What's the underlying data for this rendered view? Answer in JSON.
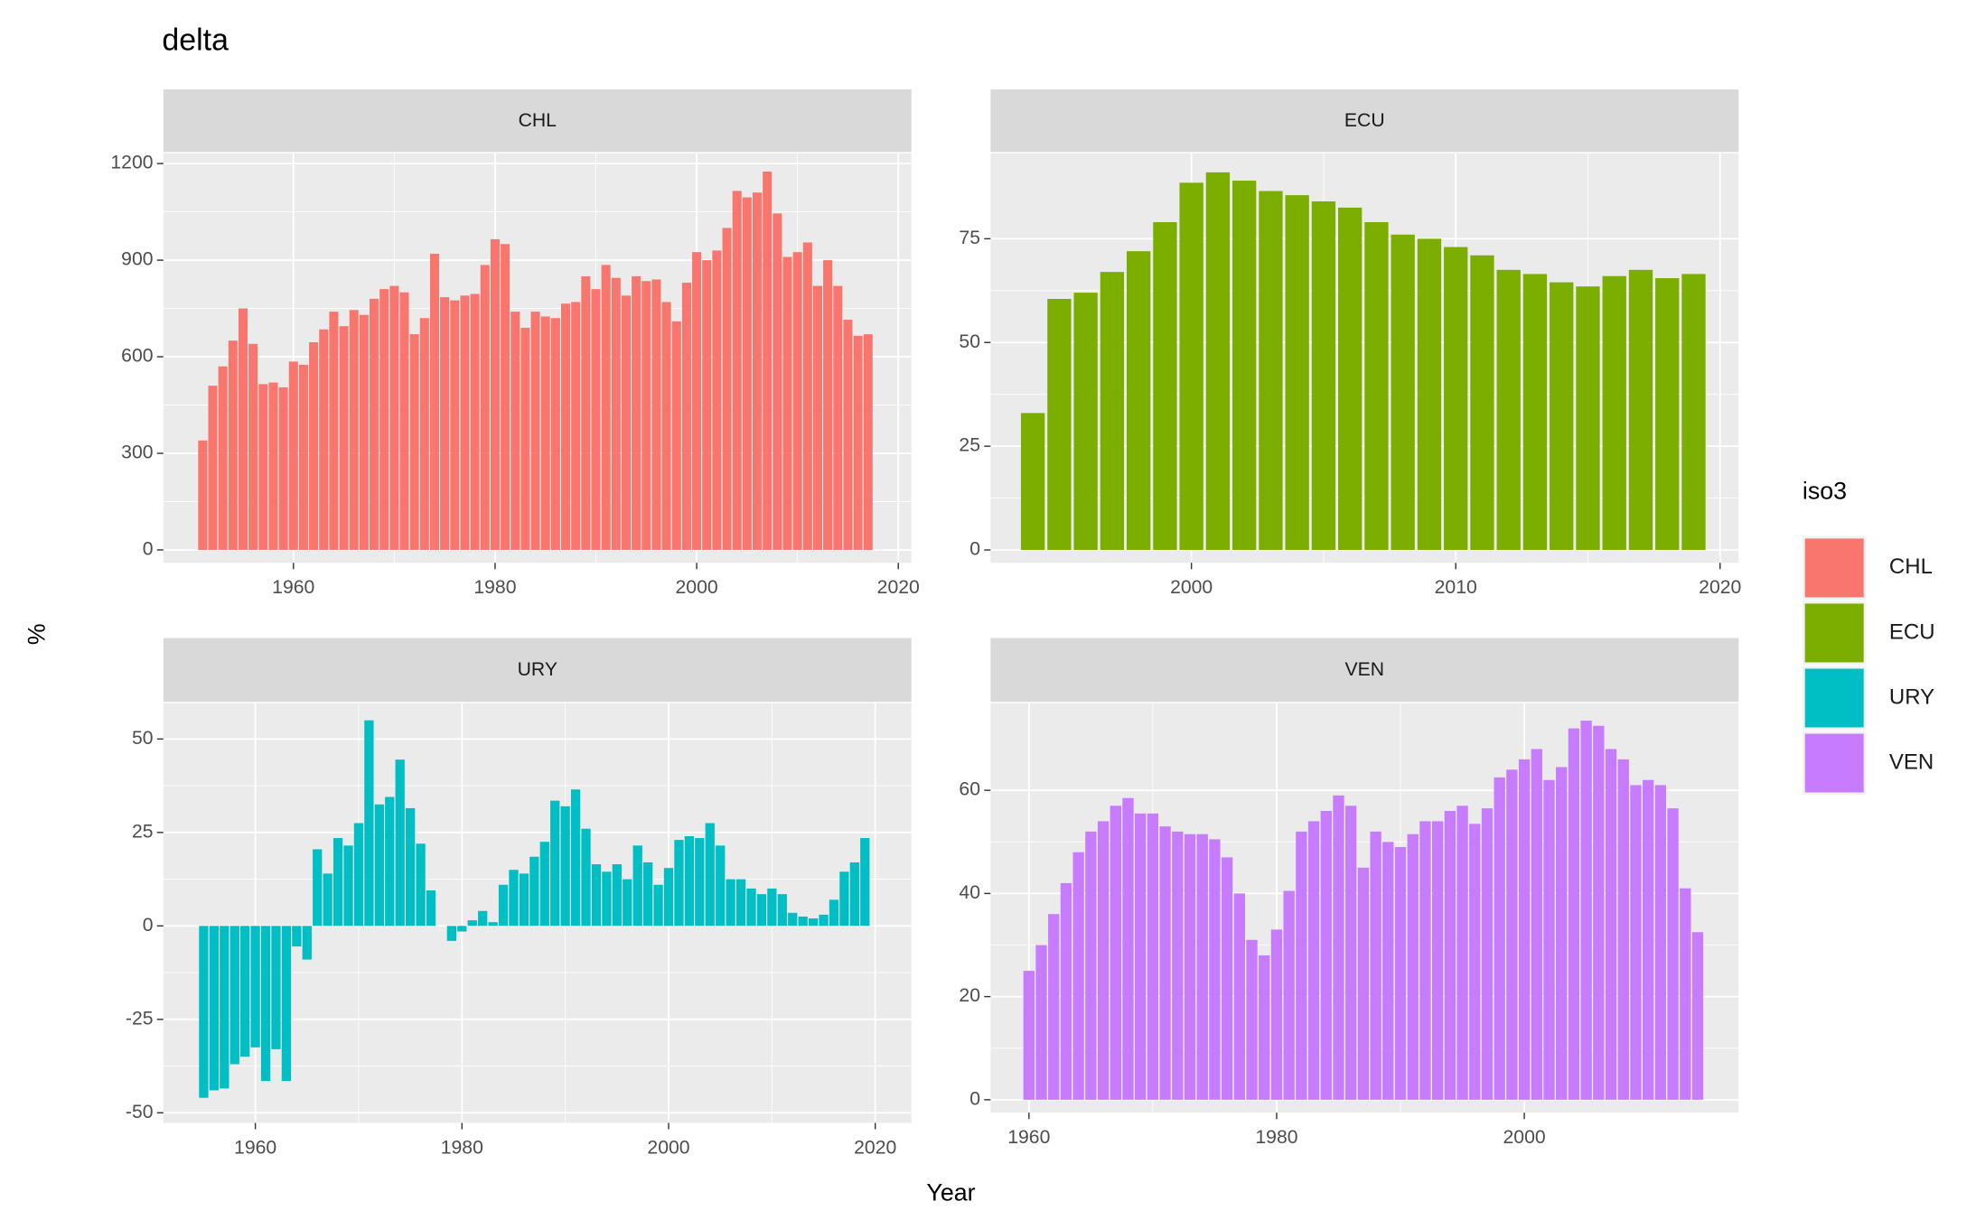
{
  "title": "delta",
  "x_label": "Year",
  "y_label": "%",
  "legend_title": "iso3",
  "chart_data": [
    {
      "type": "bar",
      "title": "CHL",
      "color": "#F8766D",
      "x": [
        1951,
        1952,
        1953,
        1954,
        1955,
        1956,
        1957,
        1958,
        1959,
        1960,
        1961,
        1962,
        1963,
        1964,
        1965,
        1966,
        1967,
        1968,
        1969,
        1970,
        1971,
        1972,
        1973,
        1974,
        1975,
        1976,
        1977,
        1978,
        1979,
        1980,
        1981,
        1982,
        1983,
        1984,
        1985,
        1986,
        1987,
        1988,
        1989,
        1990,
        1991,
        1992,
        1993,
        1994,
        1995,
        1996,
        1997,
        1998,
        1999,
        2000,
        2001,
        2002,
        2003,
        2004,
        2005,
        2006,
        2007,
        2008,
        2009,
        2010,
        2011,
        2012,
        2013,
        2014,
        2015,
        2016,
        2017
      ],
      "values": [
        340,
        510,
        570,
        650,
        750,
        640,
        515,
        520,
        505,
        585,
        575,
        645,
        685,
        740,
        695,
        745,
        730,
        780,
        810,
        820,
        800,
        670,
        720,
        920,
        785,
        775,
        790,
        795,
        885,
        965,
        950,
        740,
        690,
        740,
        725,
        720,
        765,
        770,
        850,
        810,
        885,
        845,
        790,
        850,
        835,
        840,
        770,
        710,
        830,
        925,
        900,
        930,
        1000,
        1115,
        1095,
        1110,
        1175,
        1045,
        910,
        925,
        955,
        820,
        900,
        820,
        715,
        665,
        670
      ],
      "xlim": [
        1947.1,
        2021.3
      ],
      "ylim": [
        -40,
        1232
      ],
      "xticks": [
        1960,
        1980,
        2000,
        2020
      ],
      "yticks": [
        0,
        300,
        600,
        900,
        1200
      ]
    },
    {
      "type": "bar",
      "title": "ECU",
      "color": "#7CAE00",
      "x": [
        1994,
        1995,
        1996,
        1997,
        1998,
        1999,
        2000,
        2001,
        2002,
        2003,
        2004,
        2005,
        2006,
        2007,
        2008,
        2009,
        2010,
        2011,
        2012,
        2013,
        2014,
        2015,
        2016,
        2017,
        2018,
        2019
      ],
      "values": [
        33,
        60.5,
        62,
        67,
        72,
        79,
        88.5,
        91,
        89,
        86.5,
        85.5,
        84,
        82.5,
        79,
        76,
        75,
        73,
        71,
        67.5,
        66.5,
        64.5,
        63.5,
        66,
        67.5,
        65.5,
        66.5
      ],
      "xlim": [
        1992.4,
        2020.7
      ],
      "ylim": [
        -3.1,
        95.6
      ],
      "xticks": [
        2000,
        2010,
        2020
      ],
      "yticks": [
        0,
        25,
        50,
        75
      ]
    },
    {
      "type": "bar",
      "title": "URY",
      "color": "#00BFC4",
      "x": [
        1955,
        1956,
        1957,
        1958,
        1959,
        1960,
        1961,
        1962,
        1963,
        1964,
        1965,
        1966,
        1967,
        1968,
        1969,
        1970,
        1971,
        1972,
        1973,
        1974,
        1975,
        1976,
        1977,
        1978,
        1979,
        1980,
        1981,
        1982,
        1983,
        1984,
        1985,
        1986,
        1987,
        1988,
        1989,
        1990,
        1991,
        1992,
        1993,
        1994,
        1995,
        1996,
        1997,
        1998,
        1999,
        2000,
        2001,
        2002,
        2003,
        2004,
        2005,
        2006,
        2007,
        2008,
        2009,
        2010,
        2011,
        2012,
        2013,
        2014,
        2015,
        2016,
        2017,
        2018,
        2019
      ],
      "values": [
        -46,
        -44,
        -43.5,
        -37,
        -35,
        -32.5,
        -41.5,
        -33,
        -41.5,
        -5.5,
        -9,
        20.5,
        14,
        23.5,
        21.5,
        27.5,
        55,
        32.5,
        34.5,
        44.5,
        31.5,
        22,
        9.5,
        0,
        -4,
        -1.5,
        1.5,
        4,
        1,
        11,
        15,
        14,
        18.5,
        22.5,
        33.5,
        32,
        36.5,
        26,
        16.5,
        14.5,
        16.5,
        12.5,
        21.5,
        17,
        11,
        15.5,
        23,
        24,
        23.5,
        27.5,
        21.5,
        12.5,
        12.5,
        10,
        8.5,
        10,
        8.5,
        3.5,
        2.5,
        2,
        3,
        7,
        14.5,
        17,
        23.5
      ],
      "xlim": [
        1951.1,
        2023.5
      ],
      "ylim": [
        -52.7,
        59.6
      ],
      "xticks": [
        1960,
        1980,
        2000,
        2020
      ],
      "yticks": [
        -50,
        -25,
        0,
        25,
        50
      ]
    },
    {
      "type": "bar",
      "title": "VEN",
      "color": "#C77CFF",
      "x": [
        1960,
        1961,
        1962,
        1963,
        1964,
        1965,
        1966,
        1967,
        1968,
        1969,
        1970,
        1971,
        1972,
        1973,
        1974,
        1975,
        1976,
        1977,
        1978,
        1979,
        1980,
        1981,
        1982,
        1983,
        1984,
        1985,
        1986,
        1987,
        1988,
        1989,
        1990,
        1991,
        1992,
        1993,
        1994,
        1995,
        1996,
        1997,
        1998,
        1999,
        2000,
        2001,
        2002,
        2003,
        2004,
        2005,
        2006,
        2007,
        2008,
        2009,
        2010,
        2011,
        2012,
        2013,
        2014
      ],
      "values": [
        25,
        30,
        36,
        42,
        48,
        52,
        54,
        57,
        58.5,
        55.5,
        55.5,
        53,
        52,
        51.5,
        51.5,
        50.5,
        47,
        40,
        31,
        28,
        33,
        40.5,
        52,
        54,
        56,
        59,
        57,
        45,
        52,
        50,
        49,
        51.5,
        54,
        54,
        56,
        57,
        53.5,
        56.5,
        62.5,
        64,
        66,
        68,
        62,
        64.5,
        72,
        73.5,
        72.5,
        68,
        66,
        61,
        62,
        61,
        56.5,
        41,
        32.5
      ],
      "xlim": [
        1956.9,
        2017.3
      ],
      "ylim": [
        -2.5,
        76.9
      ],
      "xticks": [
        1960,
        1980,
        2000
      ],
      "yticks": [
        0,
        20,
        40,
        60
      ]
    }
  ]
}
